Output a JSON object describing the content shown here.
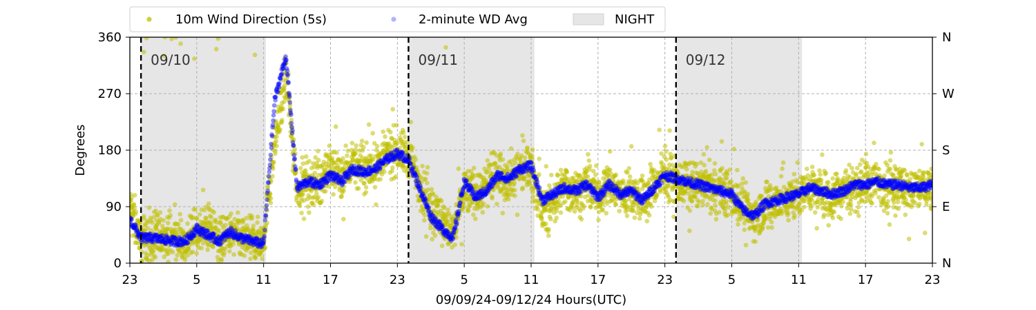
{
  "chart_data": {
    "type": "scatter",
    "xlabel": "09/09/24-09/12/24  Hours(UTC)",
    "ylabel": "Degrees",
    "ylim": [
      0,
      360
    ],
    "xlim_hours": [
      23,
      95
    ],
    "yticks": [
      0,
      90,
      180,
      270,
      360
    ],
    "ytick_labels": [
      "0",
      "90",
      "180",
      "270",
      "360"
    ],
    "y2_tick_labels": [
      "N",
      "E",
      "S",
      "W",
      "N"
    ],
    "xticks_hours": [
      23,
      29,
      35,
      41,
      47,
      53,
      59,
      65,
      71,
      77,
      83,
      89,
      95
    ],
    "xtick_labels": [
      "23",
      "5",
      "11",
      "17",
      "23",
      "5",
      "11",
      "17",
      "23",
      "5",
      "11",
      "17",
      "23"
    ],
    "grid": true,
    "legend_placement": "top-left, above plot",
    "legend": [
      {
        "label": "10m Wind Direction (5s)",
        "kind": "marker",
        "color": "#bfbf00"
      },
      {
        "label": "2-minute WD Avg",
        "kind": "marker",
        "color": "#0000ff"
      },
      {
        "label": "NIGHT",
        "kind": "patch",
        "color": "#e6e6e6"
      }
    ],
    "night_periods_hours": [
      [
        24,
        35.2
      ],
      [
        48,
        59.3
      ],
      [
        72,
        83.3
      ]
    ],
    "day_boundaries": [
      {
        "hour": 24,
        "label": "09/10"
      },
      {
        "hour": 48,
        "label": "09/11"
      },
      {
        "hour": 72,
        "label": "09/12"
      }
    ],
    "series": [
      {
        "name": "10m Wind Direction (5s)",
        "color": "#bfbf00",
        "spread_deg": 30,
        "x_hours": [
          23,
          24,
          25,
          26,
          27,
          28,
          29,
          30,
          31,
          32,
          33,
          34,
          35,
          36,
          37,
          38,
          39,
          40,
          41,
          42,
          43,
          44,
          45,
          46,
          47,
          48,
          49,
          50,
          51,
          52,
          53,
          54,
          55,
          56,
          57,
          58,
          59,
          60,
          61,
          62,
          63,
          64,
          65,
          66,
          67,
          68,
          69,
          70,
          71,
          72,
          73,
          74,
          75,
          76,
          77,
          78,
          79,
          80,
          81,
          82,
          83,
          84,
          85,
          86,
          87,
          88,
          89,
          90,
          91,
          92,
          93,
          94,
          95
        ],
        "y_deg": [
          90,
          40,
          40,
          40,
          38,
          35,
          45,
          55,
          35,
          45,
          40,
          35,
          40,
          190,
          300,
          120,
          130,
          130,
          150,
          140,
          160,
          150,
          155,
          170,
          180,
          170,
          130,
          90,
          70,
          45,
          120,
          110,
          120,
          145,
          135,
          150,
          155,
          80,
          100,
          120,
          115,
          125,
          110,
          130,
          110,
          115,
          95,
          125,
          140,
          130,
          125,
          125,
          120,
          115,
          110,
          90,
          70,
          90,
          100,
          100,
          110,
          120,
          115,
          105,
          120,
          120,
          125,
          130,
          125,
          125,
          115,
          120,
          120
        ]
      },
      {
        "name": "2-minute WD Avg",
        "color": "#0000ff",
        "x_hours": [
          23,
          24,
          25,
          26,
          27,
          28,
          29,
          30,
          31,
          32,
          33,
          34,
          35,
          36,
          37,
          38,
          39,
          40,
          41,
          42,
          43,
          44,
          45,
          46,
          47,
          48,
          49,
          50,
          51,
          52,
          53,
          54,
          55,
          56,
          57,
          58,
          59,
          60,
          61,
          62,
          63,
          64,
          65,
          66,
          67,
          68,
          69,
          70,
          71,
          72,
          73,
          74,
          75,
          76,
          77,
          78,
          79,
          80,
          81,
          82,
          83,
          84,
          85,
          86,
          87,
          88,
          89,
          90,
          91,
          92,
          93,
          94,
          95
        ],
        "y_deg": [
          70,
          40,
          40,
          38,
          35,
          35,
          55,
          45,
          35,
          50,
          40,
          35,
          30,
          260,
          330,
          120,
          130,
          125,
          140,
          130,
          150,
          145,
          150,
          165,
          175,
          165,
          120,
          75,
          55,
          40,
          130,
          105,
          115,
          140,
          135,
          150,
          155,
          100,
          110,
          120,
          115,
          125,
          105,
          125,
          110,
          115,
          100,
          120,
          140,
          135,
          130,
          125,
          120,
          115,
          110,
          85,
          75,
          95,
          100,
          105,
          110,
          120,
          115,
          110,
          115,
          125,
          125,
          130,
          125,
          125,
          120,
          120,
          125
        ]
      }
    ]
  }
}
